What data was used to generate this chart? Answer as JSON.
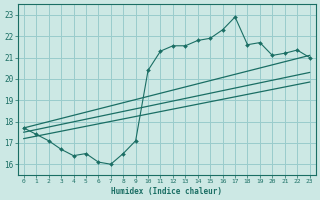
{
  "xlabel": "Humidex (Indice chaleur)",
  "bg_color": "#cce8e4",
  "line_color": "#1a6e64",
  "grid_color": "#99cccc",
  "xlim": [
    -0.5,
    23.5
  ],
  "ylim": [
    15.5,
    23.5
  ],
  "yticks": [
    16,
    17,
    18,
    19,
    20,
    21,
    22,
    23
  ],
  "xticks": [
    0,
    1,
    2,
    3,
    4,
    5,
    6,
    7,
    8,
    9,
    10,
    11,
    12,
    13,
    14,
    15,
    16,
    17,
    18,
    19,
    20,
    21,
    22,
    23
  ],
  "main_line_x": [
    0,
    1,
    2,
    3,
    4,
    5,
    6,
    7,
    8,
    9,
    10,
    11,
    12,
    13,
    14,
    15,
    16,
    17,
    18,
    19,
    20,
    21,
    22,
    23
  ],
  "main_line_y": [
    17.7,
    17.4,
    17.1,
    16.7,
    16.4,
    16.5,
    16.1,
    16.0,
    16.5,
    17.1,
    20.4,
    21.3,
    21.55,
    21.55,
    21.8,
    21.9,
    22.3,
    22.9,
    21.6,
    21.7,
    21.1,
    21.2,
    21.35,
    21.0
  ],
  "upper_line": [
    [
      0,
      17.7
    ],
    [
      23,
      21.1
    ]
  ],
  "middle_line": [
    [
      0,
      17.5
    ],
    [
      23,
      20.3
    ]
  ],
  "lower_line": [
    [
      0,
      17.2
    ],
    [
      23,
      19.85
    ]
  ]
}
